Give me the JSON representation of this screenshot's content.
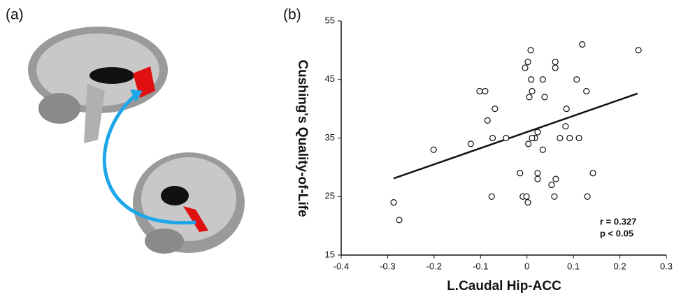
{
  "chart_data": {
    "type": "scatter",
    "annotations": [
      "(a)",
      "(b)",
      "r = 0.327",
      "p < 0.05"
    ],
    "x_label": "L.Caudal Hip-ACC",
    "y_label": "Cushing's Quality-of-Life",
    "x": [
      -0.287,
      -0.275,
      -0.201,
      -0.121,
      -0.102,
      -0.09,
      -0.085,
      -0.069,
      -0.076,
      -0.074,
      -0.045,
      -0.004,
      0.002,
      0.008,
      0.009,
      0.011,
      0.005,
      0.034,
      0.038,
      0.017,
      0.023,
      0.003,
      0.011,
      0.034,
      -0.015,
      0.023,
      0.023,
      -0.009,
      -0.001,
      0.002,
      0.061,
      0.061,
      0.071,
      0.083,
      0.085,
      0.092,
      0.107,
      0.112,
      0.119,
      0.128,
      0.062,
      0.053,
      0.059,
      0.13,
      0.142,
      0.24
    ],
    "values": [
      24,
      21,
      33,
      34,
      43,
      43,
      38,
      40,
      25,
      35,
      35,
      47,
      48,
      50,
      45,
      43,
      42,
      45,
      42,
      35,
      36,
      34,
      35,
      33,
      29,
      29,
      28,
      25,
      25,
      24,
      48,
      47,
      35,
      37,
      40,
      35,
      45,
      35,
      51,
      43,
      28,
      27,
      25,
      25,
      29,
      50
    ],
    "color": "#111111",
    "fit_line": {
      "x": [
        -0.287,
        0.238
      ],
      "y": [
        28.1,
        42.6
      ]
    },
    "xlim": [
      -0.4,
      0.3
    ],
    "xticks": [
      -0.4,
      -0.3,
      -0.2,
      -0.1,
      0,
      0.1,
      0.2,
      0.3
    ],
    "ylim": [
      15,
      55
    ],
    "yticks": [
      15,
      25,
      35,
      45,
      55
    ]
  }
}
